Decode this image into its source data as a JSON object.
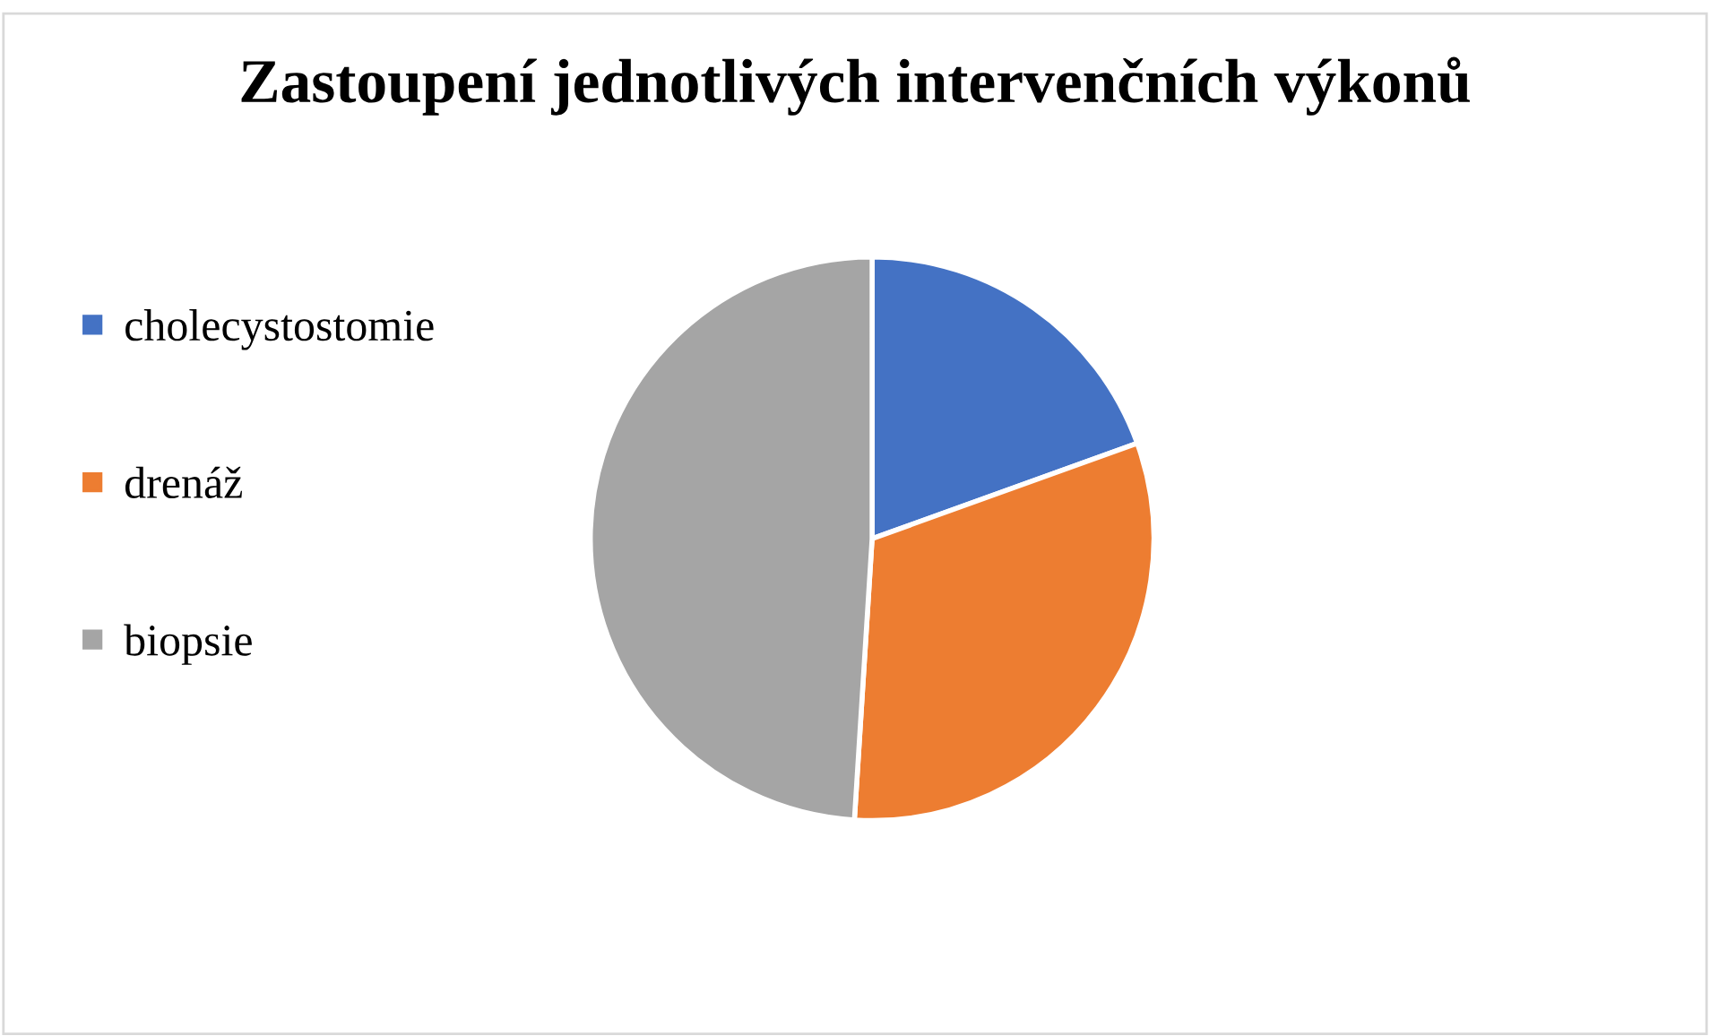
{
  "chart_data": {
    "type": "pie",
    "title": "Zastoupení jednotlivých intervenčních výkonů",
    "categories": [
      "cholecystostomie",
      "drenáž",
      "biopsie"
    ],
    "values": [
      19.5,
      31.5,
      49
    ],
    "colors": [
      "#4472c4",
      "#ed7d31",
      "#a5a5a5"
    ],
    "legend": "left"
  }
}
